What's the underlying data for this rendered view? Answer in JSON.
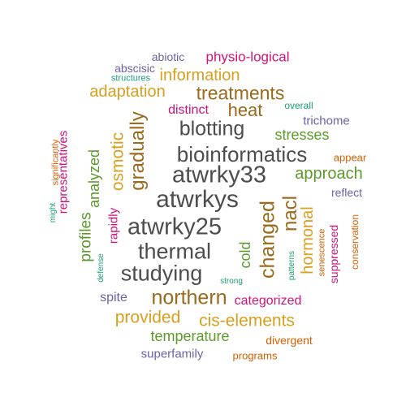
{
  "palette": {
    "dark_gray": "#4d4d4d",
    "gold": "#d9a01f",
    "brown": "#9b6a1a",
    "green": "#5c9a2a",
    "magenta": "#d1127c",
    "purple": "#6b62a8",
    "orange": "#d95f02",
    "teal": "#1b9e77"
  },
  "words": [
    {
      "text": "atwrkys",
      "color": "dark_gray",
      "rotated": false
    },
    {
      "text": "atwrky33",
      "color": "dark_gray",
      "rotated": false
    },
    {
      "text": "bioinformatics",
      "color": "dark_gray",
      "rotated": false
    },
    {
      "text": "atwrky25",
      "color": "dark_gray",
      "rotated": false
    },
    {
      "text": "thermal",
      "color": "dark_gray",
      "rotated": false
    },
    {
      "text": "studying",
      "color": "dark_gray",
      "rotated": false
    },
    {
      "text": "blotting",
      "color": "dark_gray",
      "rotated": false
    },
    {
      "text": "treatments",
      "color": "brown",
      "rotated": false
    },
    {
      "text": "heat",
      "color": "brown",
      "rotated": false
    },
    {
      "text": "northern",
      "color": "brown",
      "rotated": false
    },
    {
      "text": "gradually",
      "color": "brown",
      "rotated": true
    },
    {
      "text": "changed",
      "color": "brown",
      "rotated": true
    },
    {
      "text": "nacl",
      "color": "brown",
      "rotated": true
    },
    {
      "text": "information",
      "color": "gold",
      "rotated": false
    },
    {
      "text": "adaptation",
      "color": "gold",
      "rotated": false
    },
    {
      "text": "provided",
      "color": "gold",
      "rotated": false
    },
    {
      "text": "cis-elements",
      "color": "gold",
      "rotated": false
    },
    {
      "text": "osmotic",
      "color": "gold",
      "rotated": true
    },
    {
      "text": "hormonal",
      "color": "gold",
      "rotated": true
    },
    {
      "text": "approach",
      "color": "green",
      "rotated": false
    },
    {
      "text": "stresses",
      "color": "green",
      "rotated": false
    },
    {
      "text": "temperature",
      "color": "green",
      "rotated": false
    },
    {
      "text": "analyzed",
      "color": "green",
      "rotated": true
    },
    {
      "text": "profiles",
      "color": "green",
      "rotated": true
    },
    {
      "text": "cold",
      "color": "green",
      "rotated": true
    },
    {
      "text": "physio-logical",
      "color": "magenta",
      "rotated": false
    },
    {
      "text": "distinct",
      "color": "magenta",
      "rotated": false
    },
    {
      "text": "categorized",
      "color": "magenta",
      "rotated": false
    },
    {
      "text": "representatives",
      "color": "magenta",
      "rotated": true
    },
    {
      "text": "rapidly",
      "color": "magenta",
      "rotated": true
    },
    {
      "text": "suppressed",
      "color": "magenta",
      "rotated": true
    },
    {
      "text": "abiotic",
      "color": "purple",
      "rotated": false
    },
    {
      "text": "abscisic",
      "color": "purple",
      "rotated": false
    },
    {
      "text": "trichome",
      "color": "purple",
      "rotated": false
    },
    {
      "text": "reflect",
      "color": "purple",
      "rotated": false
    },
    {
      "text": "spite",
      "color": "purple",
      "rotated": false
    },
    {
      "text": "superfamily",
      "color": "purple",
      "rotated": false
    },
    {
      "text": "appear",
      "color": "orange",
      "rotated": false
    },
    {
      "text": "divergent",
      "color": "orange",
      "rotated": false
    },
    {
      "text": "programs",
      "color": "orange",
      "rotated": false
    },
    {
      "text": "significantly",
      "color": "orange",
      "rotated": true
    },
    {
      "text": "senescence",
      "color": "orange",
      "rotated": true
    },
    {
      "text": "conservation",
      "color": "orange",
      "rotated": true
    },
    {
      "text": "structures",
      "color": "teal",
      "rotated": false
    },
    {
      "text": "overall",
      "color": "teal",
      "rotated": false
    },
    {
      "text": "strong",
      "color": "teal",
      "rotated": false
    },
    {
      "text": "might",
      "color": "teal",
      "rotated": true
    },
    {
      "text": "defense",
      "color": "teal",
      "rotated": true
    },
    {
      "text": "patterns",
      "color": "teal",
      "rotated": true
    }
  ]
}
